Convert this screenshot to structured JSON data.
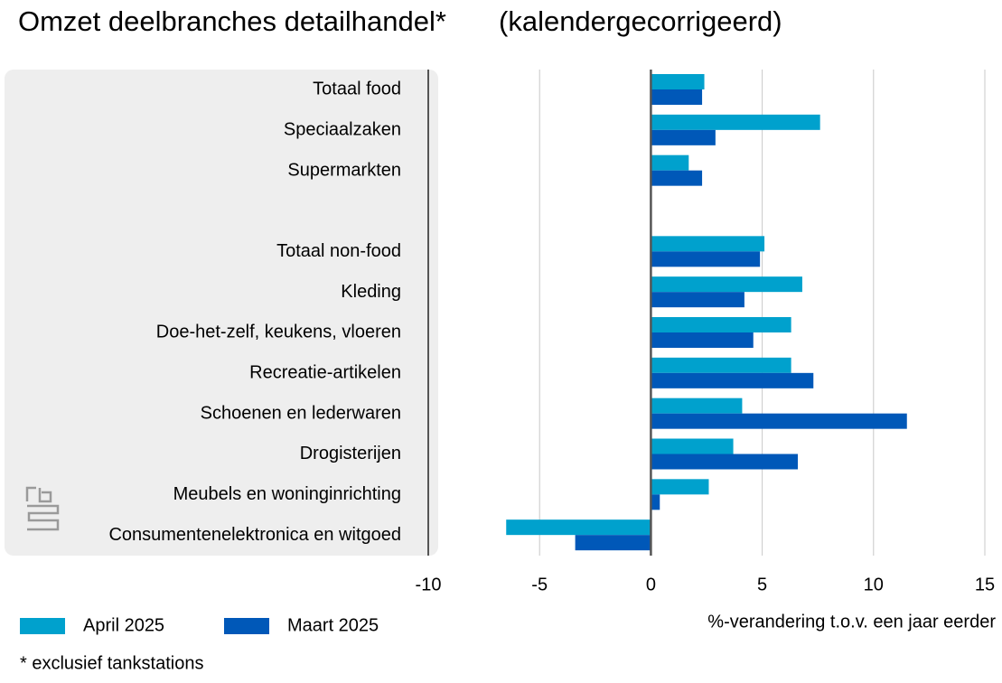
{
  "chart_data": {
    "type": "hbar",
    "title": "Omzet deelbranches detailhandel*",
    "subtitle": "(kalendergecorrigeerd)",
    "categories": [
      "Totaal food",
      "Speciaalzaken",
      "Supermarkten",
      null,
      "Totaal non-food",
      "Kleding",
      "Doe-het-zelf, keukens, vloeren",
      "Recreatie-artikelen",
      "Schoenen en lederwaren",
      "Drogisterijen",
      "Meubels en woninginrichting",
      "Consumentenelektronica en witgoed"
    ],
    "series": [
      {
        "name": "April 2025",
        "color": "#00a1cd",
        "values": [
          2.4,
          7.6,
          1.7,
          null,
          5.1,
          6.8,
          6.3,
          6.3,
          4.1,
          3.7,
          2.6,
          -6.5
        ]
      },
      {
        "name": "Maart 2025",
        "color": "#0058b8",
        "values": [
          2.3,
          2.9,
          2.3,
          null,
          4.9,
          4.2,
          4.6,
          7.3,
          11.5,
          6.6,
          0.4,
          -3.4
        ]
      }
    ],
    "xlim": [
      -10,
      15
    ],
    "xticks": [
      -10,
      -5,
      0,
      5,
      10,
      15
    ],
    "xlabel": "%-verandering t.o.v. een jaar eerder",
    "grid": true,
    "footnote": "* exclusief tankstations"
  }
}
